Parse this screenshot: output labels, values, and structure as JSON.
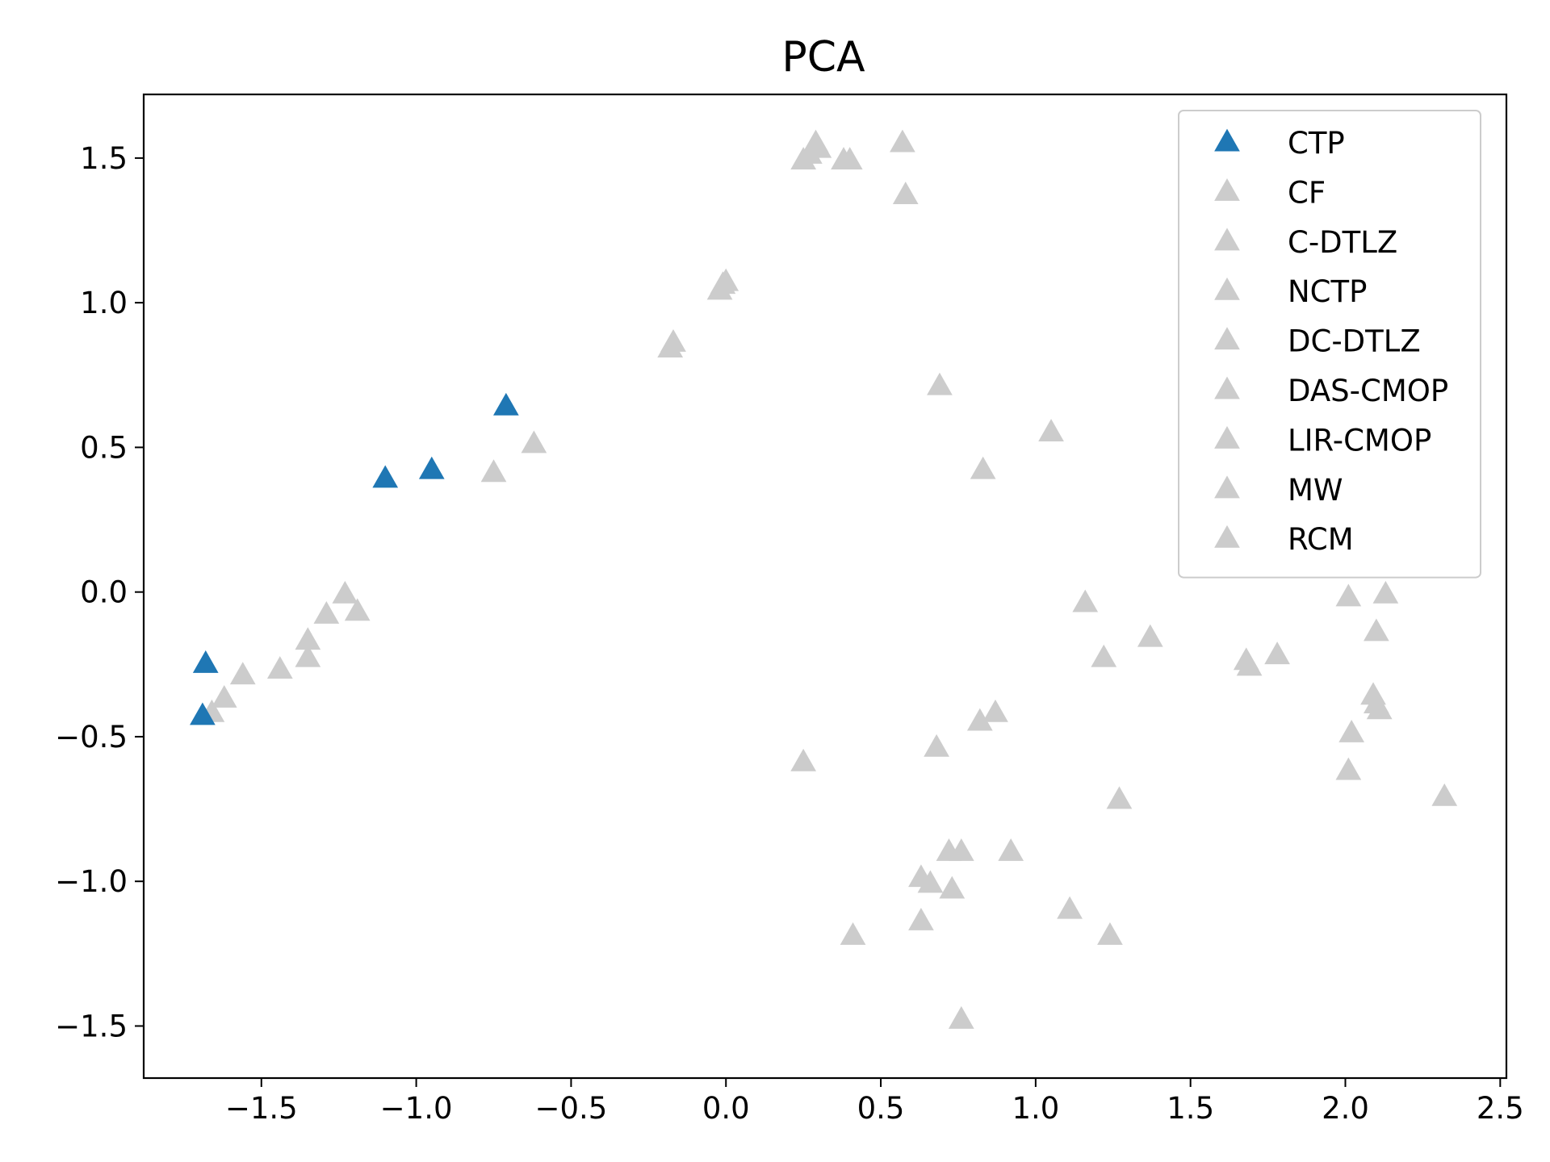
{
  "chart_data": {
    "type": "scatter",
    "title": "PCA",
    "xlabel": "",
    "ylabel": "",
    "xlim": [
      -1.88,
      2.52
    ],
    "ylim": [
      -1.68,
      1.72
    ],
    "xticks": [
      -1.5,
      -1.0,
      -0.5,
      0.0,
      0.5,
      1.0,
      1.5,
      2.0,
      2.5
    ],
    "yticks": [
      -1.5,
      -1.0,
      -0.5,
      0.0,
      0.5,
      1.0,
      1.5
    ],
    "xtick_labels": [
      "−1.5",
      "−1.0",
      "−0.5",
      "0.0",
      "0.5",
      "1.0",
      "1.5",
      "2.0",
      "2.5"
    ],
    "ytick_labels": [
      "−1.5",
      "−1.0",
      "−0.5",
      "0.0",
      "0.5",
      "1.0",
      "1.5"
    ],
    "grid": false,
    "legend_position": "top-right",
    "marker": "triangle-up",
    "colors": {
      "highlight": "#1f77b4",
      "other": "#cccccc"
    },
    "series": [
      {
        "name": "CTP",
        "color": "#1f77b4",
        "points": [
          [
            -1.69,
            -0.43
          ],
          [
            -1.68,
            -0.25
          ],
          [
            -1.1,
            0.39
          ],
          [
            -0.95,
            0.42
          ],
          [
            -0.71,
            0.64
          ]
        ]
      },
      {
        "name": "CF",
        "color": "#cccccc",
        "points": [
          [
            -1.66,
            -0.42
          ],
          [
            -1.62,
            -0.37
          ],
          [
            -1.56,
            -0.29
          ],
          [
            -1.44,
            -0.27
          ],
          [
            -1.35,
            -0.17
          ],
          [
            -1.35,
            -0.23
          ],
          [
            -1.29,
            -0.08
          ],
          [
            -1.23,
            -0.01
          ],
          [
            -1.19,
            -0.07
          ],
          [
            -0.75,
            0.41
          ],
          [
            -0.62,
            0.51
          ]
        ]
      },
      {
        "name": "C-DTLZ",
        "color": "#cccccc",
        "points": [
          [
            -0.18,
            0.84
          ],
          [
            -0.17,
            0.86
          ],
          [
            -0.02,
            1.04
          ],
          [
            -0.01,
            1.06
          ],
          [
            0.0,
            1.07
          ],
          [
            0.25,
            1.49
          ],
          [
            0.27,
            1.51
          ],
          [
            0.29,
            1.55
          ],
          [
            0.38,
            1.49
          ],
          [
            0.4,
            1.49
          ]
        ]
      },
      {
        "name": "NCTP",
        "color": "#cccccc",
        "points": [
          [
            0.57,
            1.55
          ],
          [
            0.58,
            1.37
          ],
          [
            0.3,
            1.53
          ]
        ]
      },
      {
        "name": "DC-DTLZ",
        "color": "#cccccc",
        "points": [
          [
            0.69,
            0.71
          ],
          [
            1.05,
            0.55
          ],
          [
            0.83,
            0.42
          ]
        ]
      },
      {
        "name": "DAS-CMOP",
        "color": "#cccccc",
        "points": [
          [
            1.16,
            -0.04
          ],
          [
            1.37,
            -0.16
          ],
          [
            1.22,
            -0.23
          ],
          [
            1.68,
            -0.24
          ],
          [
            1.69,
            -0.26
          ],
          [
            1.78,
            -0.22
          ],
          [
            2.01,
            -0.02
          ],
          [
            2.13,
            -0.01
          ],
          [
            2.1,
            -0.14
          ],
          [
            0.25,
            -0.59
          ]
        ]
      },
      {
        "name": "LIR-CMOP",
        "color": "#cccccc",
        "points": [
          [
            0.82,
            -0.45
          ],
          [
            0.87,
            -0.42
          ],
          [
            0.68,
            -0.54
          ],
          [
            1.27,
            -0.72
          ],
          [
            0.72,
            -0.9
          ],
          [
            0.76,
            -0.9
          ],
          [
            0.92,
            -0.9
          ],
          [
            0.63,
            -0.99
          ],
          [
            0.66,
            -1.01
          ],
          [
            0.73,
            -1.03
          ],
          [
            0.63,
            -1.14
          ]
        ]
      },
      {
        "name": "MW",
        "color": "#cccccc",
        "points": [
          [
            2.09,
            -0.36
          ],
          [
            2.1,
            -0.39
          ],
          [
            2.11,
            -0.41
          ],
          [
            2.02,
            -0.49
          ],
          [
            2.01,
            -0.62
          ],
          [
            2.32,
            -0.71
          ],
          [
            1.11,
            -1.1
          ],
          [
            1.24,
            -1.19
          ],
          [
            0.41,
            -1.19
          ],
          [
            0.76,
            -1.48
          ]
        ]
      },
      {
        "name": "RCM",
        "color": "#cccccc",
        "points": []
      }
    ]
  }
}
